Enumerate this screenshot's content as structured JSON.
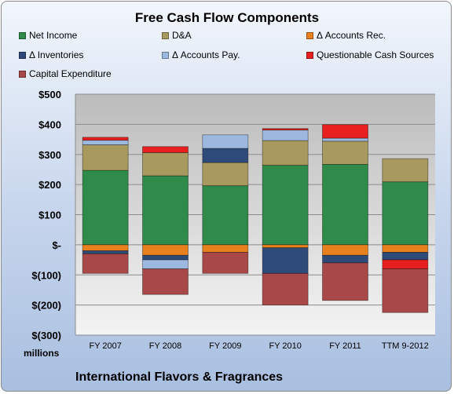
{
  "chart_data": {
    "type": "bar",
    "stacked": true,
    "title": "Free Cash Flow Components",
    "subtitle": "International Flavors & Fragrances",
    "units_label": "millions",
    "categories": [
      "FY 2007",
      "FY 2008",
      "FY 2009",
      "FY 2010",
      "FY 2011",
      "TTM 9-2012"
    ],
    "ylim": [
      -300,
      500
    ],
    "yticks": [
      {
        "value": 500,
        "label": "$500"
      },
      {
        "value": 400,
        "label": "$400"
      },
      {
        "value": 300,
        "label": "$300"
      },
      {
        "value": 200,
        "label": "$200"
      },
      {
        "value": 100,
        "label": "$100"
      },
      {
        "value": 0,
        "label": "$-"
      },
      {
        "value": -100,
        "label": "$(100)"
      },
      {
        "value": -200,
        "label": "$(200)"
      },
      {
        "value": -300,
        "label": "$(300)"
      }
    ],
    "grid": true,
    "legend_position": "top",
    "series": [
      {
        "name": "Net Income",
        "color": "#2e8b4a",
        "values": [
          247,
          229,
          196,
          264,
          267,
          209
        ]
      },
      {
        "name": "D&A",
        "color": "#a89a5e",
        "values": [
          85,
          77,
          77,
          82,
          77,
          77
        ]
      },
      {
        "name": "Δ Accounts Rec.",
        "color": "#e8801e",
        "values": [
          -20,
          -35,
          -25,
          -10,
          -35,
          -25
        ]
      },
      {
        "name": "Δ Inventories",
        "color": "#2e4a78",
        "values": [
          -10,
          -15,
          47,
          -85,
          -25,
          -25
        ]
      },
      {
        "name": "Δ Accounts Pay.",
        "color": "#9db8de",
        "values": [
          15,
          -30,
          45,
          35,
          10,
          0
        ]
      },
      {
        "name": "Questionable Cash Sources",
        "color": "#e81f1f",
        "values": [
          10,
          20,
          0,
          5,
          45,
          -30
        ]
      },
      {
        "name": "Capital Expenditure",
        "color": "#a94848",
        "values": [
          -65,
          -85,
          -70,
          -105,
          -125,
          -145
        ]
      }
    ]
  }
}
